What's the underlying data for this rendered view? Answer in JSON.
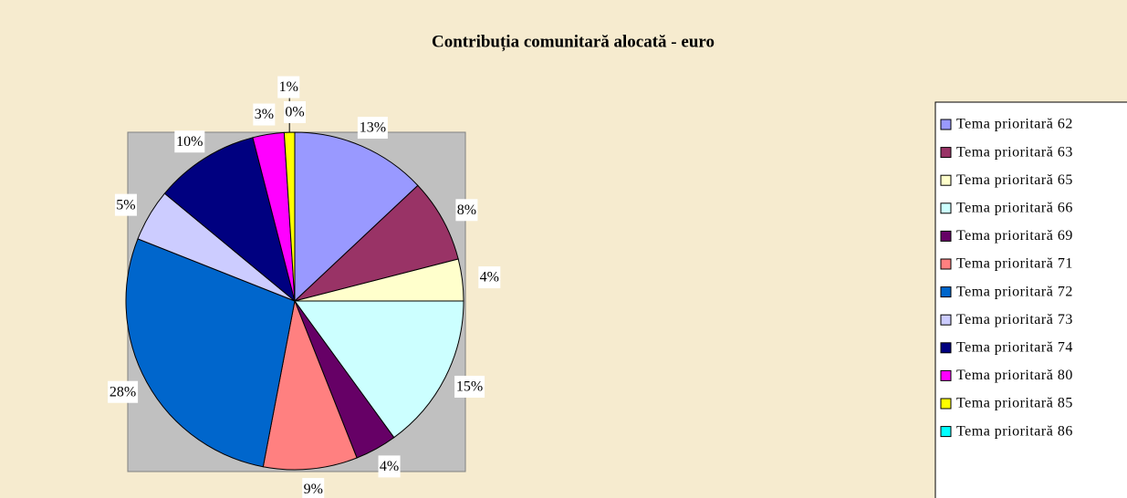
{
  "chart_data": {
    "type": "pie",
    "title": "Contribuția comunitară alocată - euro",
    "categories": [
      "Tema prioritară 62",
      "Tema prioritară 63",
      "Tema prioritară 65",
      "Tema prioritară 66",
      "Tema prioritară 69",
      "Tema prioritară 71",
      "Tema prioritară 72",
      "Tema prioritară 73",
      "Tema prioritară 74",
      "Tema prioritară 80",
      "Tema prioritară 85",
      "Tema prioritară 86"
    ],
    "values": [
      13,
      8,
      4,
      15,
      4,
      9,
      28,
      5,
      10,
      3,
      1,
      0
    ],
    "value_labels": [
      "13%",
      "8%",
      "4%",
      "15%",
      "4%",
      "9%",
      "28%",
      "5%",
      "10%",
      "3%",
      "1%",
      "0%"
    ],
    "colors": [
      "#9999ff",
      "#993366",
      "#ffffcc",
      "#ccffff",
      "#660066",
      "#ff8080",
      "#0066cc",
      "#ccccff",
      "#000080",
      "#ff00ff",
      "#ffff00",
      "#00ffff"
    ],
    "legend": "right"
  }
}
